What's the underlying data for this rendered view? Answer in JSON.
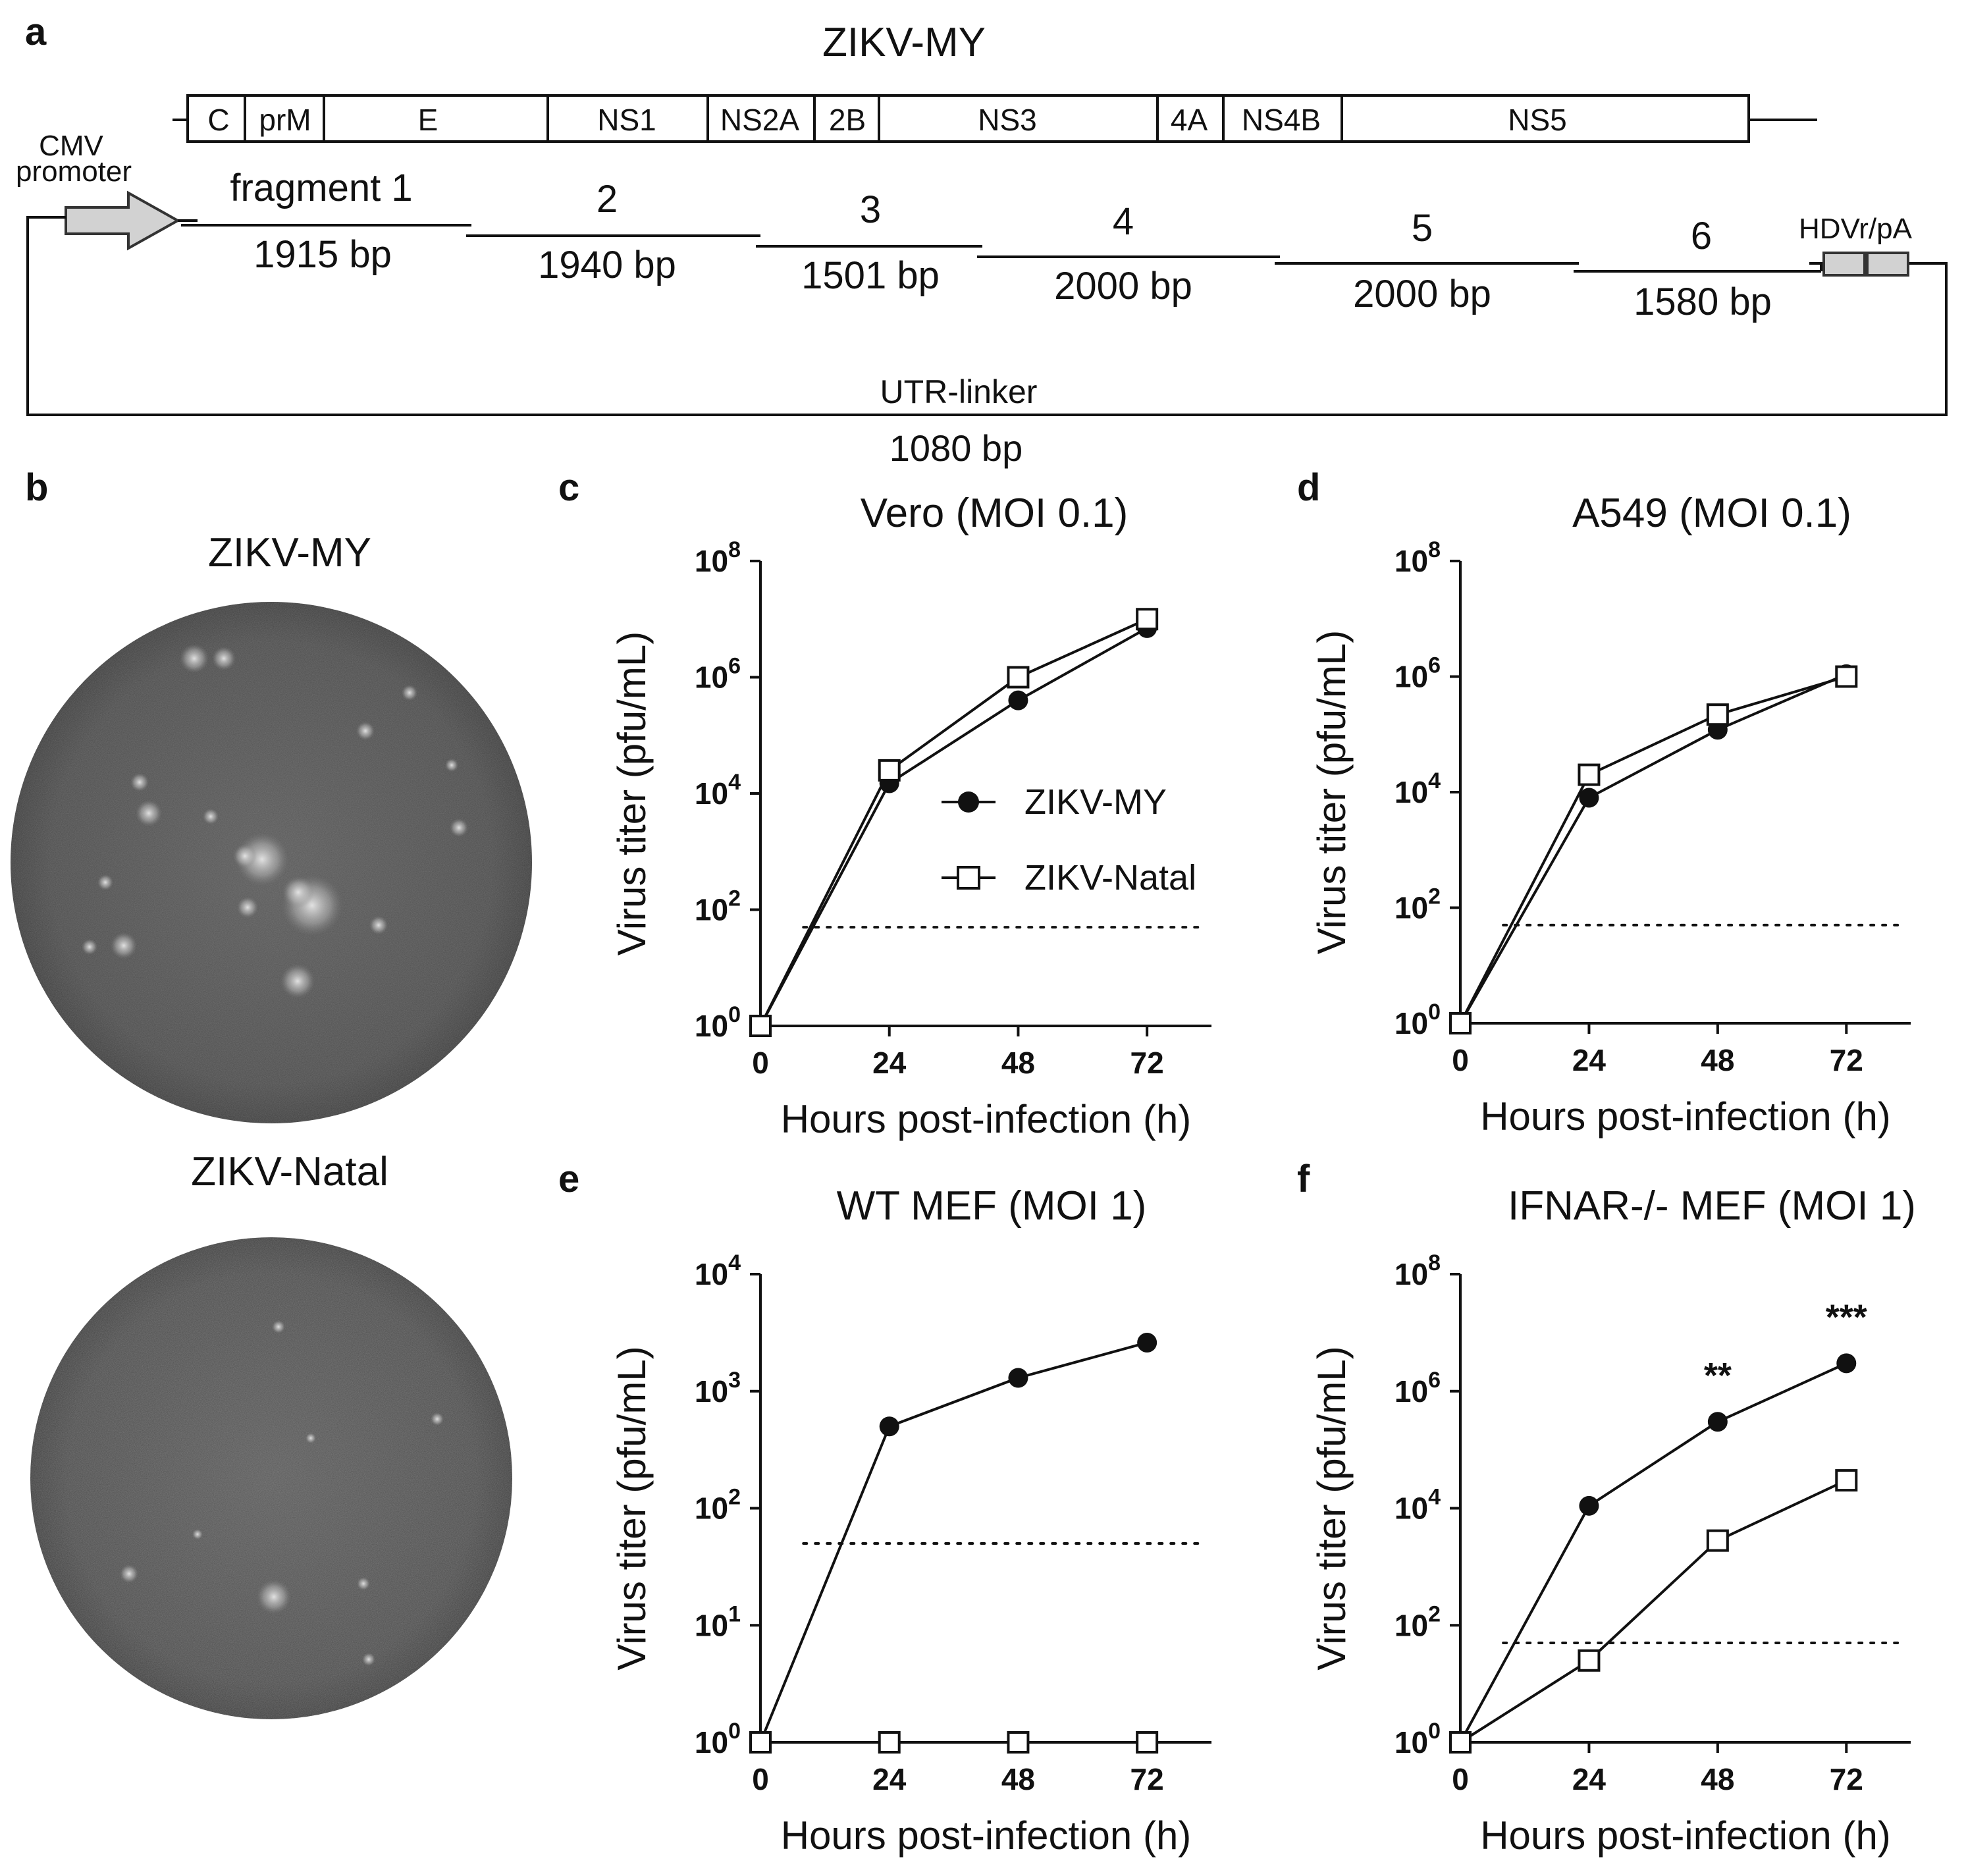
{
  "panel_labels": {
    "a": "a",
    "b": "b",
    "c": "c",
    "d": "d",
    "e": "e",
    "f": "f"
  },
  "genome": {
    "title": "ZIKV-MY",
    "segments": [
      "C",
      "prM",
      "E",
      "NS1",
      "NS2A",
      "2B",
      "NS3",
      "4A",
      "NS4B",
      "NS5"
    ],
    "promoter_label_1": "CMV",
    "promoter_label_2": "promoter",
    "fragments": [
      {
        "name": "fragment 1",
        "size": "1915 bp"
      },
      {
        "name": "2",
        "size": "1940 bp"
      },
      {
        "name": "3",
        "size": "1501 bp"
      },
      {
        "name": "4",
        "size": "2000 bp"
      },
      {
        "name": "5",
        "size": "2000 bp"
      },
      {
        "name": "6",
        "size": "1580 bp"
      }
    ],
    "hdv_label": "HDVr/pA",
    "linker_label": "UTR-linker",
    "linker_size": "1080 bp"
  },
  "plaques": {
    "top_label": "ZIKV-MY",
    "bottom_label": "ZIKV-Natal"
  },
  "legend": {
    "series1": "ZIKV-MY",
    "series2": "ZIKV-Natal"
  },
  "chart_data": [
    {
      "type": "line",
      "panel": "c",
      "title": "Vero (MOI 0.1)",
      "xlabel": "Hours post-infection (h)",
      "ylabel": "Virus titer (pfu/mL)",
      "x": [
        0,
        24,
        48,
        72
      ],
      "xticks": [
        "0",
        "24",
        "48",
        "72"
      ],
      "yscale": "log",
      "ylim": [
        1,
        100000000
      ],
      "yticks_exp": [
        "0",
        "2",
        "4",
        "6",
        "8"
      ],
      "detection_limit": 50,
      "series": [
        {
          "name": "ZIKV-MY",
          "marker": "filled-circle",
          "values": [
            1,
            15000,
            400000,
            7000000
          ]
        },
        {
          "name": "ZIKV-Natal",
          "marker": "open-square",
          "values": [
            1,
            25000,
            1000000,
            10000000
          ]
        }
      ]
    },
    {
      "type": "line",
      "panel": "d",
      "title": "A549 (MOI 0.1)",
      "xlabel": "Hours post-infection (h)",
      "ylabel": "Virus titer (pfu/mL)",
      "x": [
        0,
        24,
        48,
        72
      ],
      "xticks": [
        "0",
        "24",
        "48",
        "72"
      ],
      "yscale": "log",
      "ylim": [
        1,
        100000000
      ],
      "yticks_exp": [
        "0",
        "2",
        "4",
        "6",
        "8"
      ],
      "detection_limit": 50,
      "series": [
        {
          "name": "ZIKV-MY",
          "marker": "filled-circle",
          "values": [
            1,
            8000,
            120000,
            1100000
          ]
        },
        {
          "name": "ZIKV-Natal",
          "marker": "open-square",
          "values": [
            1,
            20000,
            220000,
            1000000
          ]
        }
      ]
    },
    {
      "type": "line",
      "panel": "e",
      "title": "WT MEF (MOI 1)",
      "xlabel": "Hours post-infection (h)",
      "ylabel": "Virus titer (pfu/mL)",
      "x": [
        0,
        24,
        48,
        72
      ],
      "xticks": [
        "0",
        "24",
        "48",
        "72"
      ],
      "yscale": "log",
      "ylim": [
        1,
        10000
      ],
      "yticks_exp": [
        "0",
        "1",
        "2",
        "3",
        "4"
      ],
      "detection_limit": 50,
      "series": [
        {
          "name": "ZIKV-MY",
          "marker": "filled-circle",
          "values": [
            1,
            500,
            1300,
            2600
          ]
        },
        {
          "name": "ZIKV-Natal",
          "marker": "open-square",
          "values": [
            1,
            1,
            1,
            1
          ]
        }
      ]
    },
    {
      "type": "line",
      "panel": "f",
      "title": "IFNAR-/- MEF (MOI 1)",
      "xlabel": "Hours post-infection (h)",
      "ylabel": "Virus titer (pfu/mL)",
      "x": [
        0,
        24,
        48,
        72
      ],
      "xticks": [
        "0",
        "24",
        "48",
        "72"
      ],
      "yscale": "log",
      "ylim": [
        1,
        100000000
      ],
      "yticks_exp": [
        "0",
        "2",
        "4",
        "6",
        "8"
      ],
      "detection_limit": 50,
      "annotations": [
        {
          "x": 48,
          "text": "**"
        },
        {
          "x": 72,
          "text": "***"
        }
      ],
      "series": [
        {
          "name": "ZIKV-MY",
          "marker": "filled-circle",
          "values": [
            1,
            11000,
            300000,
            3000000
          ]
        },
        {
          "name": "ZIKV-Natal",
          "marker": "open-square",
          "values": [
            1,
            25,
            2800,
            30000
          ]
        }
      ]
    }
  ]
}
